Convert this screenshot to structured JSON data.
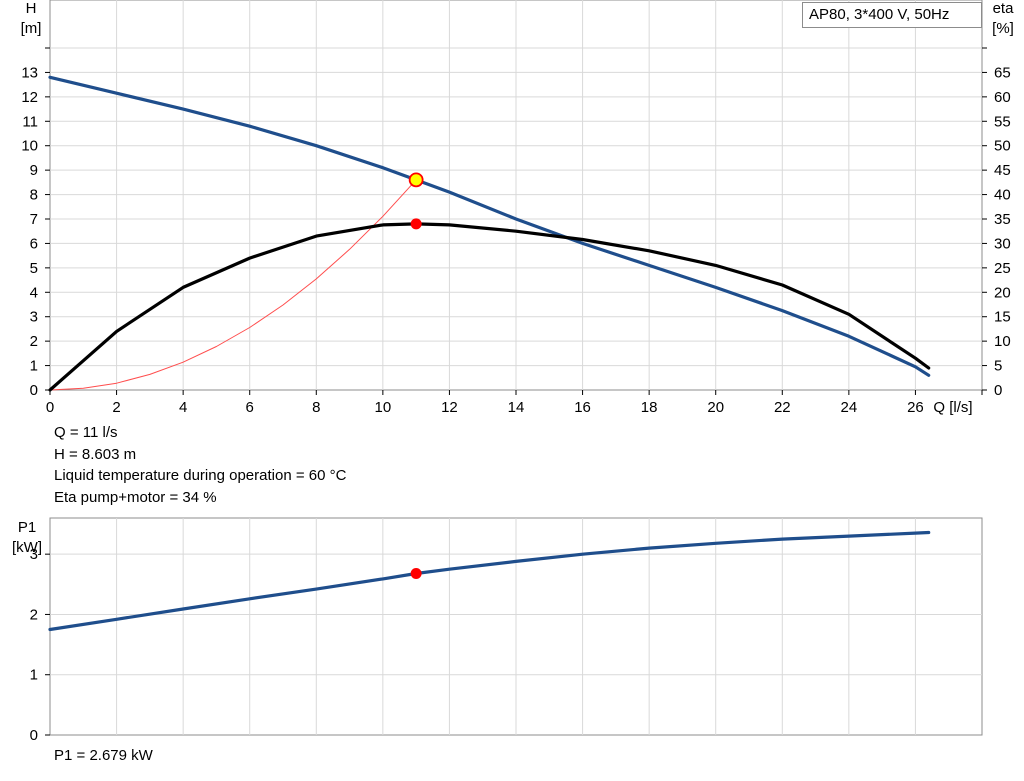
{
  "legend": {
    "title": "AP80, 3*400 V, 50Hz"
  },
  "info": {
    "q": "Q = 11 l/s",
    "h": "H = 8.603 m",
    "temp": "Liquid temperature during operation = 60 °C",
    "eta": "Eta pump+motor = 34 %",
    "p1": "P1 = 2.679 kW"
  },
  "colors": {
    "head": "#1f4e8c",
    "eta": "#000000",
    "system": "#ff4d4d",
    "point": "#ff0000",
    "point_fill_head": "#ffff00",
    "grid": "#d9d9d9"
  },
  "chart_data": [
    {
      "type": "line",
      "name": "main",
      "xlabel": "Q [l/s]",
      "ylabel_left": "H\n[m]",
      "ylabel_right": "eta\n[%]",
      "xlim": [
        0,
        28
      ],
      "ylim_left": [
        0,
        14
      ],
      "ylim_right": [
        0,
        70
      ],
      "x_ticks": [
        0,
        2,
        4,
        6,
        8,
        10,
        12,
        14,
        16,
        18,
        20,
        22,
        24,
        26
      ],
      "y_ticks_left": [
        0,
        1,
        2,
        3,
        4,
        5,
        6,
        7,
        8,
        9,
        10,
        11,
        12,
        13
      ],
      "y_ticks_right": [
        0,
        5,
        10,
        15,
        20,
        25,
        30,
        35,
        40,
        45,
        50,
        55,
        60,
        65
      ],
      "grid": true,
      "series": [
        {
          "name": "H",
          "axis": "left",
          "x": [
            0,
            2,
            4,
            6,
            8,
            10,
            11,
            12,
            14,
            16,
            18,
            20,
            22,
            24,
            26,
            26.4
          ],
          "values": [
            12.8,
            12.15,
            11.5,
            10.8,
            10.0,
            9.1,
            8.6,
            8.1,
            7.0,
            6.0,
            5.1,
            4.2,
            3.25,
            2.2,
            0.95,
            0.6
          ]
        },
        {
          "name": "eta",
          "axis": "right",
          "x": [
            0,
            2,
            4,
            6,
            8,
            10,
            11,
            12,
            14,
            16,
            18,
            20,
            22,
            24,
            26,
            26.4
          ],
          "values": [
            0,
            12,
            21,
            27,
            31.5,
            33.8,
            34,
            33.8,
            32.5,
            30.8,
            28.5,
            25.5,
            21.5,
            15.5,
            6.5,
            4.5
          ]
        },
        {
          "name": "system",
          "axis": "left",
          "x": [
            0,
            1,
            2,
            3,
            4,
            5,
            6,
            7,
            8,
            9,
            10,
            11
          ],
          "values": [
            0,
            0.07,
            0.28,
            0.64,
            1.14,
            1.78,
            2.56,
            3.48,
            4.55,
            5.76,
            7.11,
            8.6
          ]
        }
      ],
      "operating_point": {
        "x": 11,
        "h": 8.603,
        "eta": 34
      }
    },
    {
      "type": "line",
      "name": "power",
      "xlabel": "",
      "ylabel": "P1\n[kW]",
      "xlim": [
        0,
        28
      ],
      "ylim": [
        0,
        3.6
      ],
      "y_ticks": [
        0,
        1,
        2,
        3
      ],
      "grid": true,
      "series": [
        {
          "name": "P1",
          "x": [
            0,
            2,
            4,
            6,
            8,
            10,
            11,
            12,
            14,
            16,
            18,
            20,
            22,
            24,
            26,
            26.4
          ],
          "values": [
            1.75,
            1.92,
            2.09,
            2.26,
            2.42,
            2.59,
            2.679,
            2.75,
            2.88,
            3.0,
            3.1,
            3.18,
            3.25,
            3.3,
            3.35,
            3.36
          ]
        }
      ],
      "operating_point": {
        "x": 11,
        "p1": 2.679
      }
    }
  ]
}
